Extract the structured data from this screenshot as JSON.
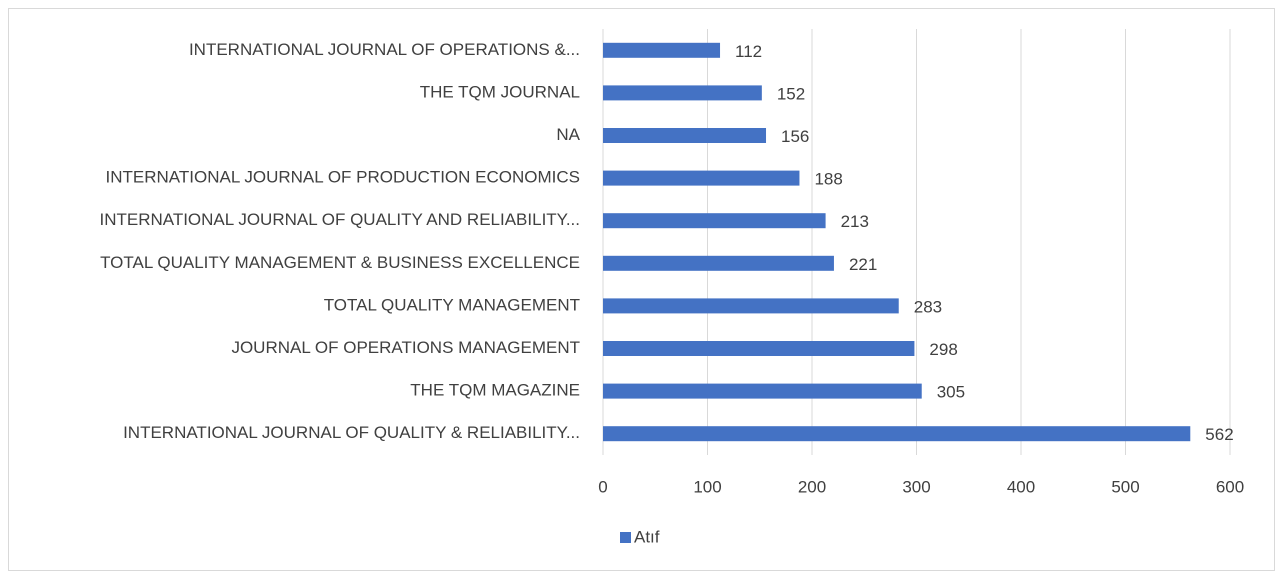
{
  "chart_data": {
    "type": "bar",
    "orientation": "horizontal",
    "categories": [
      "INTERNATIONAL JOURNAL OF OPERATIONS &...",
      "THE TQM JOURNAL",
      "NA",
      "INTERNATIONAL JOURNAL OF PRODUCTION ECONOMICS",
      "INTERNATIONAL JOURNAL OF QUALITY AND RELIABILITY...",
      "TOTAL QUALITY MANAGEMENT & BUSINESS EXCELLENCE",
      "TOTAL QUALITY MANAGEMENT",
      "JOURNAL OF OPERATIONS MANAGEMENT",
      "THE TQM MAGAZINE",
      "INTERNATIONAL JOURNAL OF QUALITY & RELIABILITY..."
    ],
    "series": [
      {
        "name": "Atıf",
        "color": "#4472c4",
        "values": [
          112,
          152,
          156,
          188,
          213,
          221,
          283,
          298,
          305,
          562
        ]
      }
    ],
    "xlim": [
      0,
      600
    ],
    "xticks": [
      0,
      100,
      200,
      300,
      400,
      500,
      600
    ],
    "grid": true,
    "legend": "bottom"
  }
}
